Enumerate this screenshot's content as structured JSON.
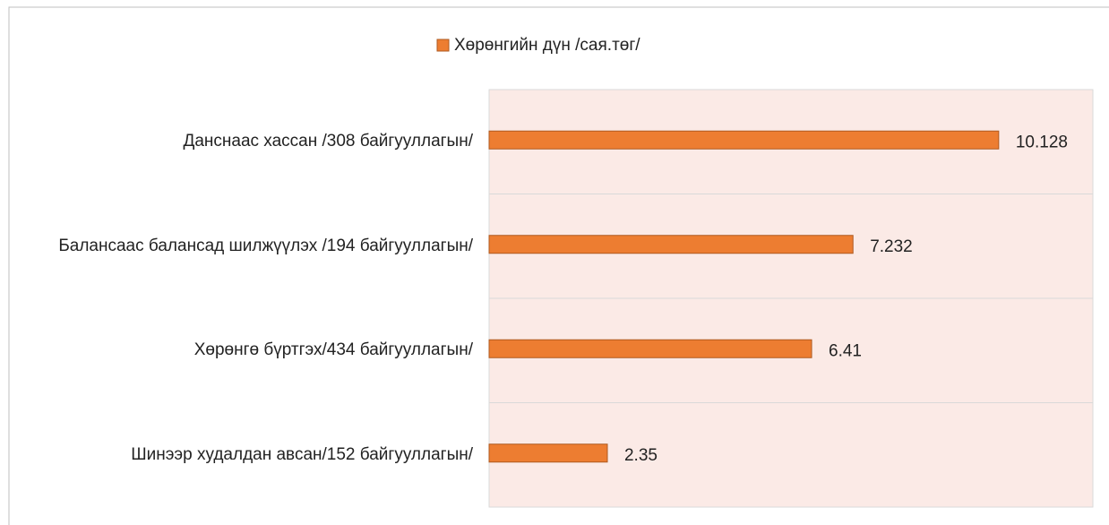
{
  "chart_data": {
    "type": "bar",
    "orientation": "horizontal",
    "categories": [
      "Данснаас хассан /308 байгууллагын/",
      "Балансаас балансад шилжүүлэх /194 байгууллагын/",
      "Хөрөнгө бүртгэх/434 байгууллагын/",
      "Шинээр худалдан авсан/152 байгууллагын/"
    ],
    "series": [
      {
        "name": "Хөрөнгийн дүн /сая.төг/",
        "color": "#ED7D31",
        "values": [
          10.128,
          7.232,
          6.41,
          2.35
        ]
      }
    ],
    "xlim": [
      0,
      12
    ],
    "legend": "top",
    "grid": true,
    "plot_background": "#FBEAE6"
  }
}
